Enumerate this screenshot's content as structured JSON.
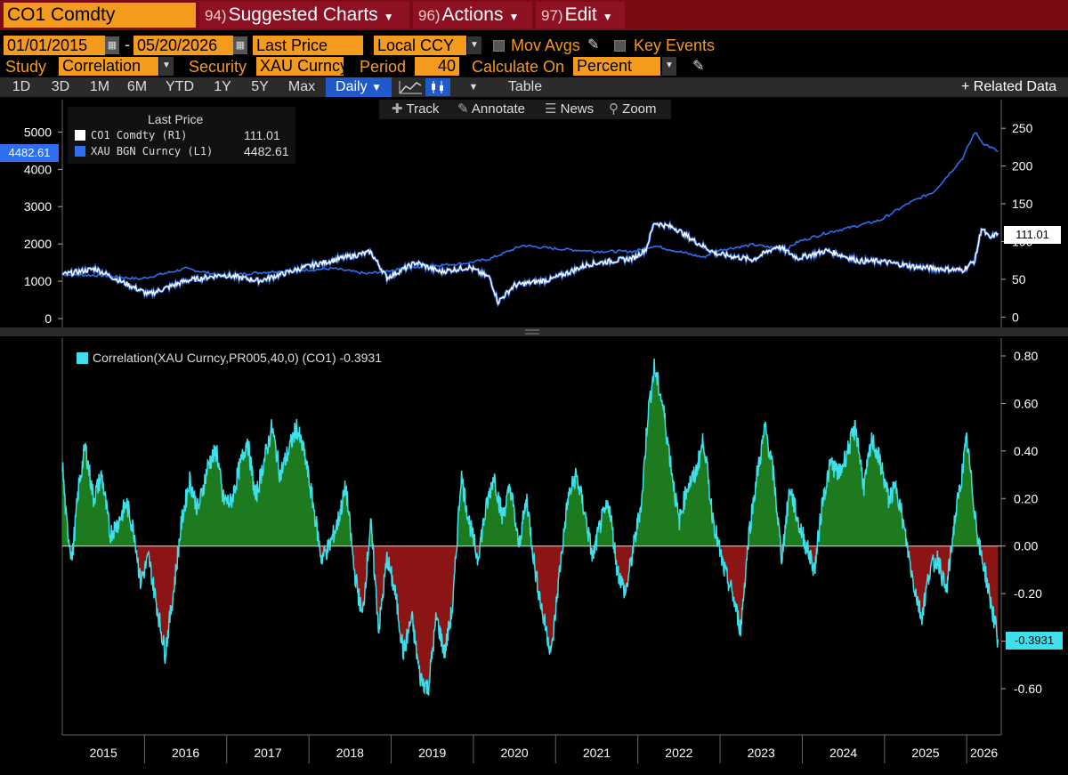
{
  "header": {
    "security": "CO1 Comdty",
    "suggested": {
      "num": "94)",
      "label": "Suggested Charts"
    },
    "actions": {
      "num": "96)",
      "label": "Actions"
    },
    "edit": {
      "num": "97)",
      "label": "Edit"
    }
  },
  "params": {
    "start_date": "01/01/2015",
    "end_date": "05/20/2026",
    "date_sep": "-",
    "field": "Last Price",
    "currency": "Local CCY",
    "mov_avgs": "Mov Avgs",
    "key_events": "Key Events",
    "study_label": "Study",
    "study_value": "Correlation",
    "security_label": "Security",
    "security_value": "XAU Curncy",
    "period_label": "Period",
    "period_value": "40",
    "calc_label": "Calculate On",
    "calc_value": "Percent"
  },
  "toolbar": {
    "ranges": [
      "1D",
      "3D",
      "1M",
      "6M",
      "YTD",
      "1Y",
      "5Y",
      "Max"
    ],
    "frequency": "Daily",
    "table": "Table",
    "related": "+ Related Data"
  },
  "chart_tools": {
    "track": "Track",
    "annotate": "Annotate",
    "news": "News",
    "zoom": "Zoom"
  },
  "legend": {
    "title": "Last Price",
    "items": [
      {
        "name": "CO1 Comdty  (R1)",
        "value": "111.01",
        "color": "#ffffff"
      },
      {
        "name": "XAU BGN Curncy  (L1)",
        "value": "4482.61",
        "color": "#2e6ff0"
      }
    ]
  },
  "correlation_legend": {
    "label": "Correlation(XAU Curncy,PR005,40,0) (CO1) -0.3931",
    "color": "#3fe0ec"
  },
  "tags": {
    "gold_last": "4482.61",
    "brent_last": "111.01",
    "corr_last": "-0.3931"
  },
  "colors": {
    "orange": "#f49a1c",
    "gold_line": "#2e6ff0",
    "brent_line": "#ffffff",
    "corr_line": "#3fe0ec",
    "corr_pos_fill": "#1e7a1e",
    "corr_neg_fill": "#8b1414",
    "header_red": "#7a0a14"
  },
  "chart_data": [
    {
      "type": "line",
      "title": "",
      "x": [
        "2015",
        "2016",
        "2017",
        "2018",
        "2019",
        "2020",
        "2021",
        "2022",
        "2023",
        "2024",
        "2025",
        "2026"
      ],
      "left_axis": {
        "ticks": [
          0,
          1000,
          2000,
          3000,
          4000,
          5000
        ],
        "ylim": [
          0,
          5200
        ]
      },
      "right_axis": {
        "ticks": [
          0,
          50,
          100,
          150,
          200,
          250
        ],
        "ylim": [
          -2,
          262
        ]
      },
      "series": [
        {
          "name": "XAU BGN Curncy  (L1)",
          "axis": "left",
          "points": [
            [
              2015.0,
              1180
            ],
            [
              2015.5,
              1150
            ],
            [
              2015.95,
              1060
            ],
            [
              2016.5,
              1340
            ],
            [
              2016.95,
              1150
            ],
            [
              2017.5,
              1250
            ],
            [
              2017.95,
              1300
            ],
            [
              2018.3,
              1340
            ],
            [
              2018.7,
              1200
            ],
            [
              2018.95,
              1280
            ],
            [
              2019.5,
              1420
            ],
            [
              2019.9,
              1480
            ],
            [
              2020.2,
              1600
            ],
            [
              2020.6,
              1960
            ],
            [
              2020.95,
              1880
            ],
            [
              2021.5,
              1800
            ],
            [
              2021.95,
              1800
            ],
            [
              2022.2,
              1950
            ],
            [
              2022.8,
              1640
            ],
            [
              2022.95,
              1820
            ],
            [
              2023.4,
              1980
            ],
            [
              2023.8,
              1850
            ],
            [
              2023.95,
              2060
            ],
            [
              2024.3,
              2300
            ],
            [
              2024.6,
              2450
            ],
            [
              2024.95,
              2640
            ],
            [
              2025.3,
              3100
            ],
            [
              2025.6,
              3400
            ],
            [
              2025.95,
              4300
            ],
            [
              2026.1,
              5000
            ],
            [
              2026.2,
              4700
            ],
            [
              2026.38,
              4482.61
            ]
          ]
        },
        {
          "name": "CO1 Comdty  (R1)",
          "axis": "right",
          "points": [
            [
              2015.0,
              56
            ],
            [
              2015.4,
              64
            ],
            [
              2015.7,
              48
            ],
            [
              2016.05,
              30
            ],
            [
              2016.5,
              48
            ],
            [
              2016.95,
              56
            ],
            [
              2017.4,
              48
            ],
            [
              2017.95,
              66
            ],
            [
              2018.4,
              78
            ],
            [
              2018.75,
              86
            ],
            [
              2018.95,
              52
            ],
            [
              2019.3,
              72
            ],
            [
              2019.6,
              60
            ],
            [
              2019.95,
              66
            ],
            [
              2020.2,
              52
            ],
            [
              2020.3,
              20
            ],
            [
              2020.5,
              42
            ],
            [
              2020.95,
              50
            ],
            [
              2021.4,
              70
            ],
            [
              2021.95,
              78
            ],
            [
              2022.1,
              90
            ],
            [
              2022.2,
              125
            ],
            [
              2022.45,
              118
            ],
            [
              2022.7,
              100
            ],
            [
              2022.95,
              84
            ],
            [
              2023.4,
              76
            ],
            [
              2023.7,
              94
            ],
            [
              2023.95,
              78
            ],
            [
              2024.3,
              88
            ],
            [
              2024.7,
              74
            ],
            [
              2024.95,
              74
            ],
            [
              2025.4,
              66
            ],
            [
              2025.95,
              62
            ],
            [
              2026.1,
              75
            ],
            [
              2026.18,
              118
            ],
            [
              2026.28,
              104
            ],
            [
              2026.38,
              111.01
            ]
          ]
        }
      ]
    },
    {
      "type": "area",
      "title": "",
      "x": [
        "2015",
        "2016",
        "2017",
        "2018",
        "2019",
        "2020",
        "2021",
        "2022",
        "2023",
        "2024",
        "2025",
        "2026"
      ],
      "ylim": [
        -0.72,
        0.83
      ],
      "y_ticks": [
        -0.6,
        -0.4,
        -0.2,
        0.0,
        0.2,
        0.4,
        0.6,
        0.8
      ],
      "series": [
        {
          "name": "Correlation(XAU Curncy,PR005,40,0) (CO1)",
          "points": [
            [
              2015.0,
              0.35
            ],
            [
              2015.05,
              0.1
            ],
            [
              2015.12,
              -0.05
            ],
            [
              2015.2,
              0.25
            ],
            [
              2015.28,
              0.42
            ],
            [
              2015.38,
              0.2
            ],
            [
              2015.48,
              0.3
            ],
            [
              2015.58,
              0.05
            ],
            [
              2015.68,
              0.1
            ],
            [
              2015.78,
              0.18
            ],
            [
              2015.88,
              0.05
            ],
            [
              2015.95,
              -0.15
            ],
            [
              2016.05,
              -0.05
            ],
            [
              2016.15,
              -0.25
            ],
            [
              2016.25,
              -0.45
            ],
            [
              2016.35,
              -0.2
            ],
            [
              2016.45,
              0.1
            ],
            [
              2016.55,
              0.28
            ],
            [
              2016.65,
              0.15
            ],
            [
              2016.78,
              0.35
            ],
            [
              2016.88,
              0.4
            ],
            [
              2016.95,
              0.2
            ],
            [
              2017.05,
              0.18
            ],
            [
              2017.15,
              0.32
            ],
            [
              2017.25,
              0.45
            ],
            [
              2017.35,
              0.2
            ],
            [
              2017.45,
              0.35
            ],
            [
              2017.55,
              0.5
            ],
            [
              2017.65,
              0.3
            ],
            [
              2017.75,
              0.4
            ],
            [
              2017.85,
              0.5
            ],
            [
              2017.95,
              0.38
            ],
            [
              2018.05,
              0.18
            ],
            [
              2018.15,
              -0.05
            ],
            [
              2018.25,
              0.0
            ],
            [
              2018.35,
              0.1
            ],
            [
              2018.45,
              0.25
            ],
            [
              2018.55,
              -0.1
            ],
            [
              2018.65,
              -0.3
            ],
            [
              2018.75,
              0.1
            ],
            [
              2018.85,
              -0.35
            ],
            [
              2018.95,
              -0.05
            ],
            [
              2019.05,
              -0.2
            ],
            [
              2019.15,
              -0.45
            ],
            [
              2019.25,
              -0.3
            ],
            [
              2019.35,
              -0.55
            ],
            [
              2019.45,
              -0.6
            ],
            [
              2019.55,
              -0.3
            ],
            [
              2019.65,
              -0.45
            ],
            [
              2019.75,
              -0.25
            ],
            [
              2019.85,
              0.3
            ],
            [
              2019.95,
              0.1
            ],
            [
              2020.05,
              -0.05
            ],
            [
              2020.15,
              0.15
            ],
            [
              2020.25,
              0.3
            ],
            [
              2020.35,
              0.12
            ],
            [
              2020.45,
              0.25
            ],
            [
              2020.55,
              0.0
            ],
            [
              2020.65,
              0.2
            ],
            [
              2020.75,
              -0.1
            ],
            [
              2020.85,
              -0.3
            ],
            [
              2020.95,
              -0.45
            ],
            [
              2021.05,
              -0.1
            ],
            [
              2021.15,
              0.2
            ],
            [
              2021.25,
              0.3
            ],
            [
              2021.35,
              0.15
            ],
            [
              2021.45,
              -0.05
            ],
            [
              2021.55,
              0.1
            ],
            [
              2021.65,
              0.18
            ],
            [
              2021.75,
              -0.1
            ],
            [
              2021.85,
              -0.2
            ],
            [
              2021.95,
              0.0
            ],
            [
              2022.05,
              0.2
            ],
            [
              2022.12,
              0.55
            ],
            [
              2022.2,
              0.75
            ],
            [
              2022.3,
              0.6
            ],
            [
              2022.4,
              0.35
            ],
            [
              2022.5,
              0.1
            ],
            [
              2022.6,
              0.25
            ],
            [
              2022.7,
              0.3
            ],
            [
              2022.8,
              0.45
            ],
            [
              2022.9,
              0.15
            ],
            [
              2022.98,
              0.0
            ],
            [
              2023.05,
              -0.1
            ],
            [
              2023.15,
              -0.2
            ],
            [
              2023.25,
              -0.35
            ],
            [
              2023.35,
              0.05
            ],
            [
              2023.45,
              0.3
            ],
            [
              2023.55,
              0.5
            ],
            [
              2023.65,
              0.3
            ],
            [
              2023.75,
              -0.05
            ],
            [
              2023.85,
              0.25
            ],
            [
              2023.95,
              0.1
            ],
            [
              2024.05,
              0.0
            ],
            [
              2024.15,
              -0.1
            ],
            [
              2024.25,
              0.2
            ],
            [
              2024.35,
              0.35
            ],
            [
              2024.45,
              0.3
            ],
            [
              2024.55,
              0.4
            ],
            [
              2024.65,
              0.5
            ],
            [
              2024.75,
              0.25
            ],
            [
              2024.85,
              0.45
            ],
            [
              2024.95,
              0.35
            ],
            [
              2025.05,
              0.2
            ],
            [
              2025.15,
              0.25
            ],
            [
              2025.25,
              0.05
            ],
            [
              2025.35,
              -0.15
            ],
            [
              2025.45,
              -0.3
            ],
            [
              2025.55,
              -0.1
            ],
            [
              2025.65,
              -0.05
            ],
            [
              2025.75,
              -0.2
            ],
            [
              2025.85,
              0.1
            ],
            [
              2025.92,
              0.25
            ],
            [
              2026.0,
              0.45
            ],
            [
              2026.08,
              0.2
            ],
            [
              2026.15,
              0.0
            ],
            [
              2026.22,
              -0.1
            ],
            [
              2026.3,
              -0.25
            ],
            [
              2026.38,
              -0.3931
            ]
          ]
        }
      ]
    }
  ]
}
